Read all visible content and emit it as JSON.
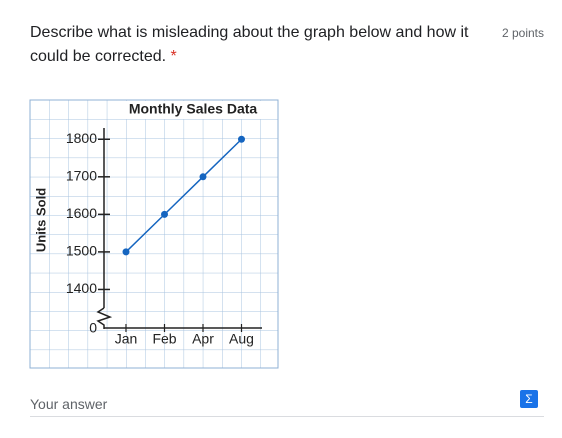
{
  "question": {
    "text": "Describe what is misleading about the graph below and how it could be corrected.",
    "required_mark": "*",
    "points": "2 points"
  },
  "chart_data": {
    "type": "line",
    "title": "Monthly Sales Data",
    "y_label": "Units Sold",
    "categories": [
      "Jan",
      "Feb",
      "Apr",
      "Aug"
    ],
    "values": [
      1500,
      1600,
      1700,
      1800
    ],
    "color": "#1565c0",
    "ylim": [
      1300,
      1830
    ],
    "yticks": [
      1400,
      1500,
      1600,
      1700,
      1800
    ],
    "y_break_label": 0
  },
  "answer": {
    "placeholder": "Your answer",
    "icon": "Σ"
  }
}
